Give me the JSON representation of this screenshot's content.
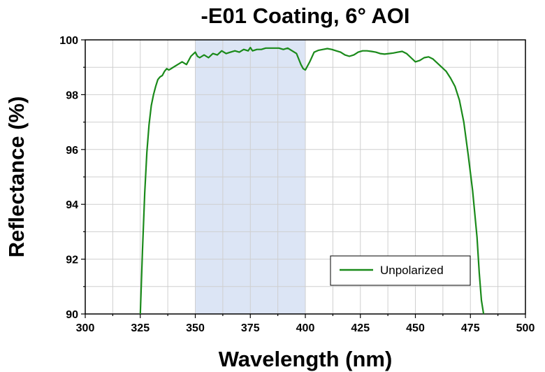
{
  "chart_data": {
    "type": "line",
    "title": "-E01 Coating, 6° AOI",
    "xlabel": "Wavelength (nm)",
    "ylabel": "Reflectance (%)",
    "xlim": [
      300,
      500
    ],
    "ylim": [
      90,
      100
    ],
    "xticks": [
      "300",
      "325",
      "350",
      "375",
      "400",
      "425",
      "450",
      "475",
      "500"
    ],
    "yticks": [
      "90",
      "92",
      "94",
      "96",
      "98",
      "100"
    ],
    "grid": true,
    "legend_position": "bottom-right",
    "shaded_band": {
      "from": 350,
      "to": 400,
      "color": "#dce5f5"
    },
    "series": [
      {
        "name": "Unpolarized",
        "color": "#1a8a1a",
        "x": [
          325,
          326,
          327,
          328,
          329,
          330,
          331,
          332,
          333,
          334,
          335,
          336,
          337,
          338,
          339,
          340,
          342,
          344,
          346,
          348,
          350,
          351,
          352,
          354,
          356,
          358,
          360,
          362,
          364,
          366,
          368,
          370,
          372,
          374,
          375,
          376,
          378,
          380,
          382,
          384,
          386,
          388,
          390,
          392,
          394,
          396,
          398,
          399,
          400,
          402,
          404,
          406,
          408,
          410,
          412,
          414,
          416,
          418,
          420,
          422,
          424,
          426,
          428,
          430,
          432,
          434,
          436,
          438,
          440,
          442,
          444,
          446,
          448,
          450,
          452,
          454,
          456,
          458,
          460,
          462,
          464,
          466,
          468,
          470,
          472,
          474,
          476,
          478,
          479,
          480,
          481
        ],
        "y": [
          90.0,
          92.3,
          94.4,
          95.9,
          96.9,
          97.6,
          98.0,
          98.3,
          98.55,
          98.65,
          98.7,
          98.85,
          98.95,
          98.9,
          98.95,
          99.0,
          99.1,
          99.2,
          99.1,
          99.4,
          99.55,
          99.4,
          99.35,
          99.45,
          99.35,
          99.5,
          99.45,
          99.6,
          99.5,
          99.55,
          99.6,
          99.55,
          99.65,
          99.6,
          99.72,
          99.6,
          99.65,
          99.65,
          99.7,
          99.7,
          99.7,
          99.7,
          99.65,
          99.7,
          99.6,
          99.5,
          99.1,
          98.95,
          98.9,
          99.2,
          99.55,
          99.62,
          99.65,
          99.68,
          99.65,
          99.6,
          99.55,
          99.45,
          99.4,
          99.45,
          99.55,
          99.6,
          99.6,
          99.58,
          99.55,
          99.5,
          99.48,
          99.5,
          99.52,
          99.55,
          99.58,
          99.5,
          99.35,
          99.2,
          99.25,
          99.35,
          99.38,
          99.3,
          99.15,
          99.0,
          98.85,
          98.6,
          98.3,
          97.8,
          97.0,
          95.8,
          94.5,
          92.8,
          91.5,
          90.5,
          90.0
        ]
      }
    ]
  }
}
